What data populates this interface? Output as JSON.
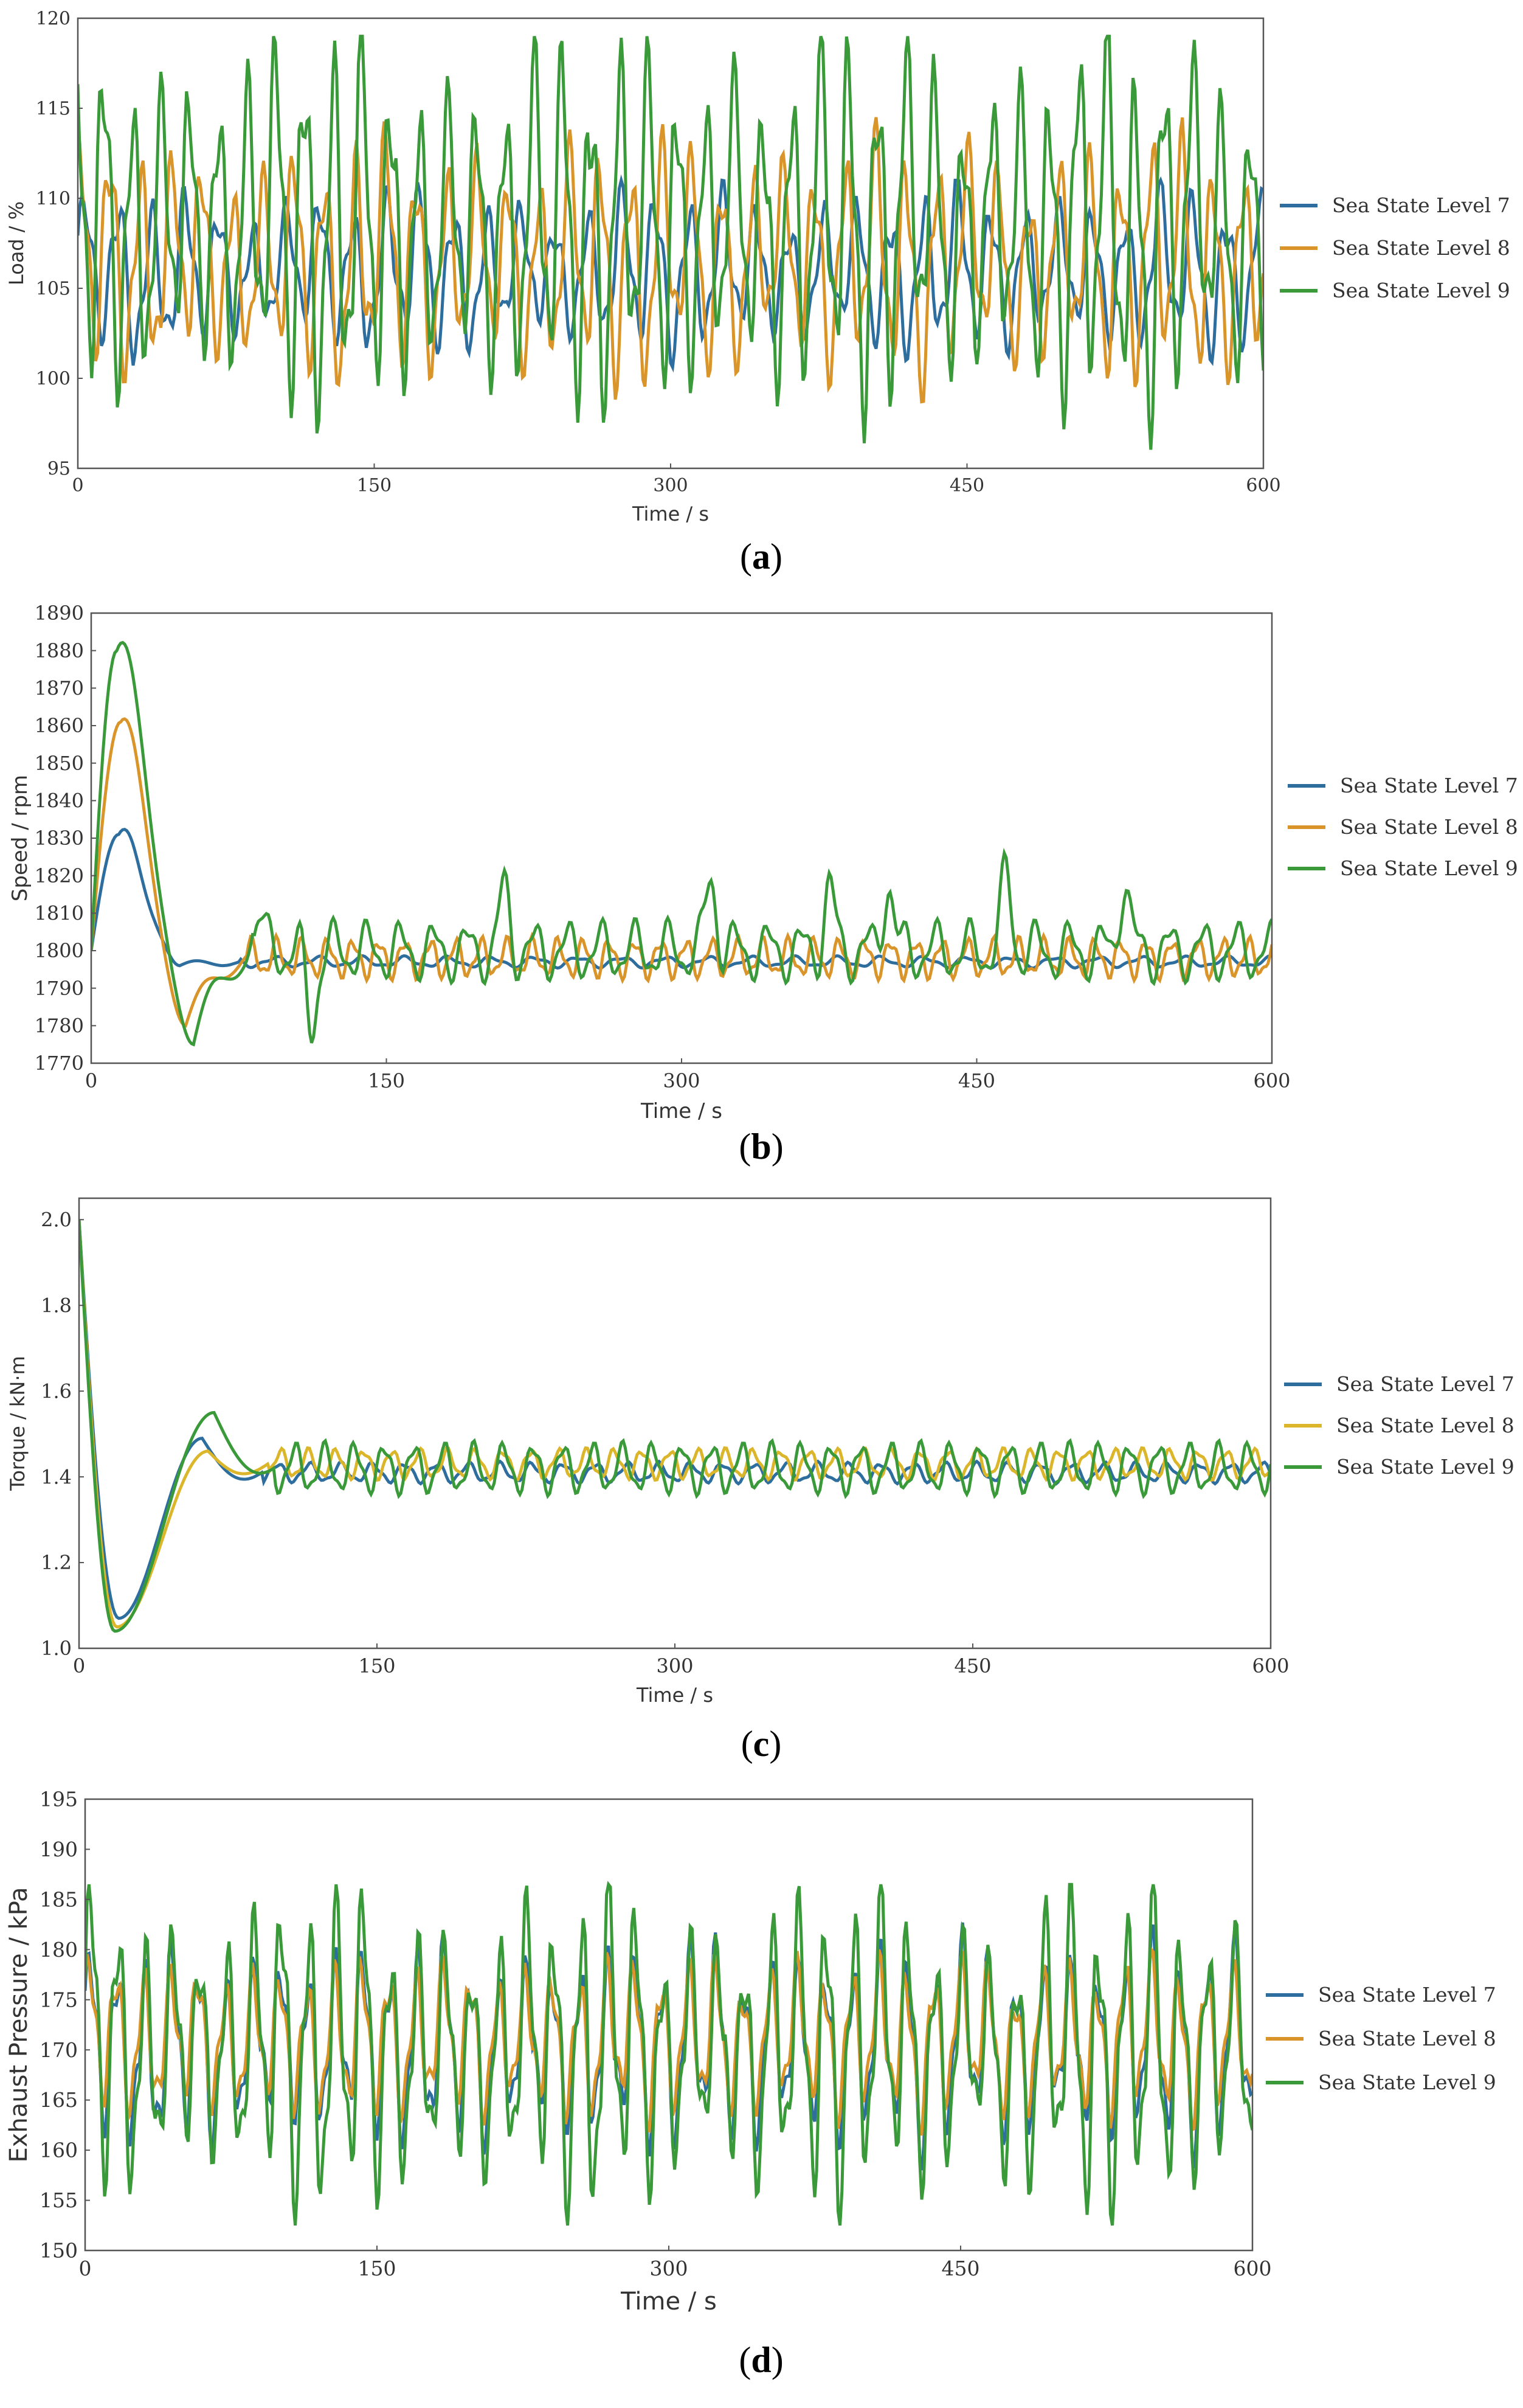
{
  "colors": {
    "level7": "#2e6e9e",
    "level8": "#d9952a",
    "level8_c": "#dcb62a",
    "level9": "#3a9a3a"
  },
  "chart_data": [
    {
      "type": "line",
      "panel_label": "a",
      "xlabel": "Time / s",
      "ylabel": "Load / %",
      "xlim": [
        0,
        600
      ],
      "ylim": [
        95,
        120
      ],
      "xticks": [
        0,
        150,
        300,
        450,
        600
      ],
      "yticks": [
        95,
        100,
        105,
        110,
        115,
        120
      ],
      "legend_position": "right",
      "series": [
        {
          "name": "Sea State Level 7",
          "color_key": "level7",
          "model": {
            "base": 106,
            "amp": 4.2,
            "period": 17,
            "phase": 0.3,
            "mod": 0.7,
            "min_y": 99,
            "max_y": 111
          }
        },
        {
          "name": "Sea State Level 8",
          "color_key": "level8",
          "model": {
            "base": 106.5,
            "amp": 6.3,
            "period": 15.5,
            "phase": 1.2,
            "mod": 0.6,
            "min_y": 98.7,
            "max_y": 114.5
          }
        },
        {
          "name": "Sea State Level 9",
          "color_key": "level9",
          "model": {
            "base": 108.5,
            "amp": 9.2,
            "period": 14.5,
            "phase": 2.1,
            "mod": 0.8,
            "min_y": 95.6,
            "max_y": 119
          }
        }
      ]
    },
    {
      "type": "line",
      "panel_label": "b",
      "xlabel": "Time / s",
      "ylabel": "Speed / rpm",
      "xlim": [
        0,
        600
      ],
      "ylim": [
        1770,
        1890
      ],
      "xticks": [
        0,
        150,
        300,
        450,
        600
      ],
      "yticks": [
        1770,
        1780,
        1790,
        1800,
        1810,
        1820,
        1830,
        1840,
        1850,
        1860,
        1870,
        1880,
        1890
      ],
      "legend_position": "right",
      "series": [
        {
          "name": "Sea State Level 7",
          "color_key": "level7",
          "model": {
            "start": 1800,
            "peak": 1831,
            "peak_t": 14,
            "dip": 1796,
            "dip_t": 45,
            "settle": 1797,
            "amp": 1.5,
            "period": 22
          }
        },
        {
          "name": "Sea State Level 8",
          "color_key": "level8",
          "model": {
            "start": 1800,
            "peak": 1861,
            "peak_t": 15,
            "dip": 1780,
            "dip_t": 48,
            "settle": 1798,
            "amp": 5.5,
            "period": 13
          }
        },
        {
          "name": "Sea State Level 9",
          "color_key": "level9",
          "model": {
            "start": 1800,
            "peak": 1880,
            "peak_t": 13,
            "dip": 1775,
            "dip_t": 52,
            "settle": 1800,
            "amp": 8,
            "period": 17,
            "spikes": [
              [
                85,
                1817
              ],
              [
                112,
                1788
              ],
              [
                210,
                1824
              ],
              [
                315,
                1828
              ],
              [
                375,
                1825
              ],
              [
                405,
                1827
              ],
              [
                465,
                1828
              ],
              [
                525,
                1827
              ]
            ]
          }
        }
      ]
    },
    {
      "type": "line",
      "panel_label": "c",
      "xlabel": "Time / s",
      "ylabel": "Torque / kN·m",
      "xlim": [
        0,
        600
      ],
      "ylim": [
        1.0,
        2.05
      ],
      "xticks": [
        0,
        150,
        300,
        450,
        600
      ],
      "yticks": [
        1.0,
        1.2,
        1.4,
        1.6,
        1.8,
        2.0
      ],
      "legend_position": "right",
      "series": [
        {
          "name": "Sea State Level 7",
          "color_key": "level7",
          "model": {
            "start": 2.0,
            "dip": 1.07,
            "dip_t": 20,
            "hump": 1.49,
            "hump_t": 62,
            "settle": 1.41,
            "amp": 0.02,
            "period": 16
          }
        },
        {
          "name": "Sea State Level 8",
          "color_key": "level8_c",
          "model": {
            "start": 2.0,
            "dip": 1.05,
            "dip_t": 19,
            "hump": 1.46,
            "hump_t": 65,
            "settle": 1.43,
            "amp": 0.03,
            "period": 14
          }
        },
        {
          "name": "Sea State Level 9",
          "color_key": "level9",
          "model": {
            "start": 2.0,
            "dip": 1.04,
            "dip_t": 18,
            "hump": 1.55,
            "hump_t": 68,
            "settle": 1.42,
            "amp": 0.05,
            "period": 15
          }
        }
      ]
    },
    {
      "type": "line",
      "panel_label": "d",
      "xlabel": "Time / s",
      "ylabel": "Exhaust Pressure / kPa",
      "xlim": [
        0,
        600
      ],
      "ylim": [
        150,
        195
      ],
      "xticks": [
        0,
        150,
        300,
        450,
        600
      ],
      "yticks": [
        150,
        155,
        160,
        165,
        170,
        175,
        180,
        185,
        190,
        195
      ],
      "legend_position": "right",
      "series": [
        {
          "name": "Sea State Level 7",
          "color_key": "level7",
          "model": {
            "base": 170.5,
            "amp": 10,
            "period": 14,
            "phase": 0.4,
            "mod": 0.5,
            "min_y": 158,
            "max_y": 183
          }
        },
        {
          "name": "Sea State Level 8",
          "color_key": "level8",
          "model": {
            "base": 171,
            "amp": 8.5,
            "period": 14,
            "phase": 0.6,
            "mod": 0.3,
            "min_y": 159.5,
            "max_y": 180
          }
        },
        {
          "name": "Sea State Level 9",
          "color_key": "level9",
          "model": {
            "base": 170,
            "amp": 14,
            "period": 14,
            "phase": 0.2,
            "mod": 0.8,
            "min_y": 152.5,
            "max_y": 186.5
          }
        }
      ]
    }
  ]
}
